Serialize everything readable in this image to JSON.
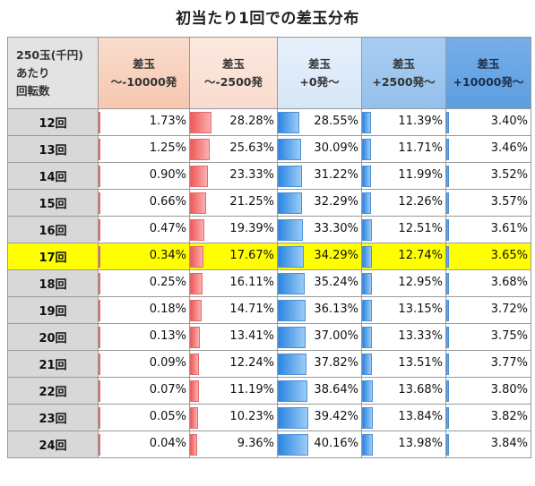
{
  "title": "初当たり1回での差玉分布",
  "header": {
    "row_label": [
      "250玉(千円)",
      "あたり",
      "回転数"
    ],
    "columns": [
      {
        "l1": "差玉",
        "l2": "～-10000発"
      },
      {
        "l1": "差玉",
        "l2": "～-2500発"
      },
      {
        "l1": "差玉",
        "l2": "+0発～"
      },
      {
        "l1": "差玉",
        "l2": "+2500発～"
      },
      {
        "l1": "差玉",
        "l2": "+10000発～"
      }
    ]
  },
  "highlight_row": "17回",
  "colors": {
    "highlight": "#ffff00",
    "red_bar": "#ef5a5a",
    "blue_bar": "#2c86e0"
  },
  "chart_data": {
    "type": "table",
    "title": "初当たり1回での差玉分布",
    "row_header": "250玉(千円)あたり回転数",
    "columns": [
      "差玉～-10000発",
      "差玉～-2500発",
      "差玉+0発～",
      "差玉+2500発～",
      "差玉+10000発～"
    ],
    "rows": [
      {
        "label": "12回",
        "values": [
          "1.73%",
          "28.28%",
          "28.55%",
          "11.39%",
          "3.40%"
        ]
      },
      {
        "label": "13回",
        "values": [
          "1.25%",
          "25.63%",
          "30.09%",
          "11.71%",
          "3.46%"
        ]
      },
      {
        "label": "14回",
        "values": [
          "0.90%",
          "23.33%",
          "31.22%",
          "11.99%",
          "3.52%"
        ]
      },
      {
        "label": "15回",
        "values": [
          "0.66%",
          "21.25%",
          "32.29%",
          "12.26%",
          "3.57%"
        ]
      },
      {
        "label": "16回",
        "values": [
          "0.47%",
          "19.39%",
          "33.30%",
          "12.51%",
          "3.61%"
        ]
      },
      {
        "label": "17回",
        "values": [
          "0.34%",
          "17.67%",
          "34.29%",
          "12.74%",
          "3.65%"
        ]
      },
      {
        "label": "18回",
        "values": [
          "0.25%",
          "16.11%",
          "35.24%",
          "12.95%",
          "3.68%"
        ]
      },
      {
        "label": "19回",
        "values": [
          "0.18%",
          "14.71%",
          "36.13%",
          "13.15%",
          "3.72%"
        ]
      },
      {
        "label": "20回",
        "values": [
          "0.13%",
          "13.41%",
          "37.00%",
          "13.33%",
          "3.75%"
        ]
      },
      {
        "label": "21回",
        "values": [
          "0.09%",
          "12.24%",
          "37.82%",
          "13.51%",
          "3.77%"
        ]
      },
      {
        "label": "22回",
        "values": [
          "0.07%",
          "11.19%",
          "38.64%",
          "13.68%",
          "3.80%"
        ]
      },
      {
        "label": "23回",
        "values": [
          "0.05%",
          "10.23%",
          "39.42%",
          "13.84%",
          "3.82%"
        ]
      },
      {
        "label": "24回",
        "values": [
          "0.04%",
          "9.36%",
          "40.16%",
          "13.98%",
          "3.84%"
        ]
      }
    ]
  }
}
